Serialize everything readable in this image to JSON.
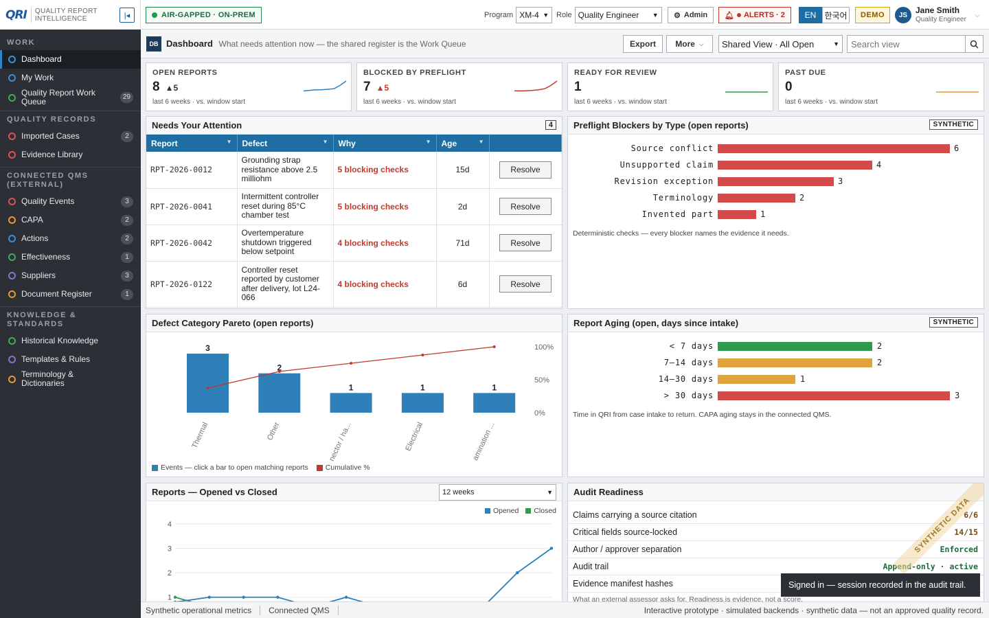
{
  "brand": {
    "logo": "QRI",
    "line1": "QUALITY REPORT",
    "line2": "INTELLIGENCE"
  },
  "sidebar": {
    "sections": [
      {
        "title": "WORK",
        "items": [
          {
            "label": "Dashboard",
            "color": "#3b8fd4",
            "count": "",
            "active": true
          },
          {
            "label": "My Work",
            "color": "#3b8fd4",
            "count": ""
          },
          {
            "label": "Quality Report Work Queue",
            "color": "#3faa5a",
            "count": "29"
          }
        ]
      },
      {
        "title": "QUALITY RECORDS",
        "items": [
          {
            "label": "Imported Cases",
            "color": "#d9534f",
            "count": "2"
          },
          {
            "label": "Evidence Library",
            "color": "#d9534f",
            "count": ""
          }
        ]
      },
      {
        "title": "CONNECTED QMS (EXTERNAL)",
        "items": [
          {
            "label": "Quality Events",
            "color": "#d9534f",
            "count": "3"
          },
          {
            "label": "CAPA",
            "color": "#e8963a",
            "count": "2"
          },
          {
            "label": "Actions",
            "color": "#3b8fd4",
            "count": "2"
          },
          {
            "label": "Effectiveness",
            "color": "#3faa5a",
            "count": "1"
          },
          {
            "label": "Suppliers",
            "color": "#8a6fd1",
            "count": "3"
          },
          {
            "label": "Document Register",
            "color": "#e8963a",
            "count": "1"
          }
        ]
      },
      {
        "title": "KNOWLEDGE & STANDARDS",
        "items": [
          {
            "label": "Historical Knowledge",
            "color": "#3faa5a",
            "count": ""
          },
          {
            "label": "Templates & Rules",
            "color": "#8a6fd1",
            "count": ""
          },
          {
            "label": "Terminology & Dictionaries",
            "color": "#e8963a",
            "count": ""
          }
        ]
      }
    ]
  },
  "topbar": {
    "airgap": "AIR-GAPPED · ON-PREM",
    "program_label": "Program",
    "program_value": "XM-4",
    "role_label": "Role",
    "role_value": "Quality Engineer",
    "admin": "Admin",
    "alerts": "ALERTS · 2",
    "lang_en": "EN",
    "lang_ko": "한국어",
    "demo": "DEMO",
    "user_initials": "JS",
    "user_name": "Jane Smith",
    "user_role": "Quality Engineer"
  },
  "pagehead": {
    "icon": "DB",
    "title": "Dashboard",
    "subtitle": "What needs attention now — the shared register is the Work Queue",
    "export": "Export",
    "more": "More",
    "view": "Shared View · All Open",
    "search_placeholder": "Search view"
  },
  "kpis": [
    {
      "title": "OPEN REPORTS",
      "value": "8",
      "delta": "▲5",
      "delta_color": "#333",
      "sub": "last 6 weeks · vs. window start",
      "spark_color": "#2f7fc1",
      "trend": [
        0.1,
        0.15,
        0.2,
        0.2,
        0.25,
        0.3,
        0.6,
        1
      ]
    },
    {
      "title": "BLOCKED BY PREFLIGHT",
      "value": "7",
      "delta": "▲5",
      "delta_color": "#c0392b",
      "sub": "last 6 weeks · vs. window start",
      "spark_color": "#c0392b",
      "trend": [
        0.1,
        0.1,
        0.12,
        0.15,
        0.2,
        0.3,
        0.6,
        1
      ]
    },
    {
      "title": "READY FOR REVIEW",
      "value": "1",
      "delta": "",
      "delta_color": "#333",
      "sub": "last 6 weeks · vs. window start",
      "spark_color": "#2e9a4e",
      "trend": [
        0,
        0,
        0,
        0,
        0,
        0,
        0,
        0
      ]
    },
    {
      "title": "PAST DUE",
      "value": "0",
      "delta": "",
      "delta_color": "#333",
      "sub": "last 6 weeks · vs. window start",
      "spark_color": "#e8963a",
      "trend": [
        0,
        0,
        0,
        0,
        0,
        0,
        0,
        0
      ]
    }
  ],
  "attention": {
    "title": "Needs Your Attention",
    "count": "4",
    "columns": [
      "Report",
      "Defect",
      "Why",
      "Age"
    ],
    "action": "Resolve",
    "rows": [
      {
        "report": "RPT-2026-0012",
        "defect": "Grounding strap resistance above 2.5 milliohm",
        "why": "5 blocking checks",
        "age": "15d"
      },
      {
        "report": "RPT-2026-0041",
        "defect": "Intermittent controller reset during 85°C chamber test",
        "why": "5 blocking checks",
        "age": "2d"
      },
      {
        "report": "RPT-2026-0042",
        "defect": "Overtemperature shutdown triggered below setpoint",
        "why": "4 blocking checks",
        "age": "71d"
      },
      {
        "report": "RPT-2026-0122",
        "defect": "Controller reset reported by customer after delivery, lot L24-066",
        "why": "4 blocking checks",
        "age": "6d"
      }
    ]
  },
  "blockers": {
    "title": "Preflight Blockers by Type (open reports)",
    "badge": "SYNTHETIC",
    "note": "Deterministic checks — every blocker names the evidence it needs.",
    "max": 6,
    "items": [
      {
        "label": "Source conflict",
        "value": 6,
        "color": "#d24a47"
      },
      {
        "label": "Unsupported claim",
        "value": 4,
        "color": "#d24a47"
      },
      {
        "label": "Revision exception",
        "value": 3,
        "color": "#d24a47"
      },
      {
        "label": "Terminology",
        "value": 2,
        "color": "#d24a47"
      },
      {
        "label": "Invented part",
        "value": 1,
        "color": "#d24a47"
      }
    ]
  },
  "chart_data": [
    {
      "type": "bar",
      "title": "Defect Category Pareto (open reports)",
      "categories": [
        "Thermal",
        "Other",
        "nector / ha...",
        "Electrical",
        "amination ..."
      ],
      "series": [
        {
          "name": "Events — click a bar to open matching reports",
          "values": [
            3,
            2,
            1,
            1,
            1
          ],
          "color": "#2f7fb8"
        },
        {
          "name": "Cumulative %",
          "values": [
            37.5,
            62.5,
            75,
            87.5,
            100
          ],
          "color": "#c0392b"
        }
      ],
      "y2_ticks": [
        "100%",
        "50%",
        "0%"
      ],
      "ylim": [
        0,
        3
      ]
    },
    {
      "type": "bar",
      "title": "Report Aging (open, days since intake)",
      "badge": "SYNTHETIC",
      "note": "Time in QRI from case intake to return. CAPA aging stays in the connected QMS.",
      "categories": [
        "< 7 days",
        "7–14 days",
        "14–30 days",
        "> 30 days"
      ],
      "values": [
        2,
        2,
        1,
        3
      ],
      "colors": [
        "#2e9a4e",
        "#e0a43e",
        "#e0a43e",
        "#d24a47"
      ],
      "max": 3
    },
    {
      "type": "line",
      "title": "Reports — Opened vs Closed",
      "range_option": "12 weeks",
      "y_ticks": [
        1,
        2,
        3,
        4
      ],
      "ylim": [
        0.6,
        4.5
      ],
      "x": [
        1,
        2,
        3,
        4,
        5,
        6,
        7,
        8,
        9,
        10,
        11,
        12
      ],
      "series": [
        {
          "name": "Opened",
          "color": "#2f7fb8",
          "values": [
            0.8,
            1,
            1,
            1,
            0.6,
            1,
            0.6,
            0.6,
            0.6,
            0.6,
            2,
            3
          ]
        },
        {
          "name": "Closed",
          "color": "#2e9a4e",
          "values": [
            1,
            0.6,
            0.6,
            0.6,
            0.6,
            0.6,
            0.6,
            0.6,
            0.6,
            0.6,
            0.6,
            0.6
          ]
        }
      ]
    }
  ],
  "audit": {
    "title": "Audit Readiness",
    "watermark": "SYNTHETIC DATA",
    "rows": [
      {
        "label": "Claims carrying a source citation",
        "value": "6/6",
        "color": "#7a4a10"
      },
      {
        "label": "Critical fields source-locked",
        "value": "14/15",
        "color": "#7a4a10"
      },
      {
        "label": "Author / approver separation",
        "value": "Enforced",
        "color": "#1d6a3c"
      },
      {
        "label": "Audit trail",
        "value": "Append-only · active",
        "color": "#1d6a3c"
      },
      {
        "label": "Evidence manifest hashes",
        "value": "",
        "color": "#1d6a3c"
      }
    ],
    "footnote": "What an external assessor asks for. Readiness is evidence, not a score."
  },
  "toast": "Signed in — session recorded in the audit trail.",
  "footer": {
    "left1": "Synthetic operational metrics",
    "left2": "Connected QMS",
    "right": "Interactive prototype · simulated backends · synthetic data — not an approved quality record."
  }
}
